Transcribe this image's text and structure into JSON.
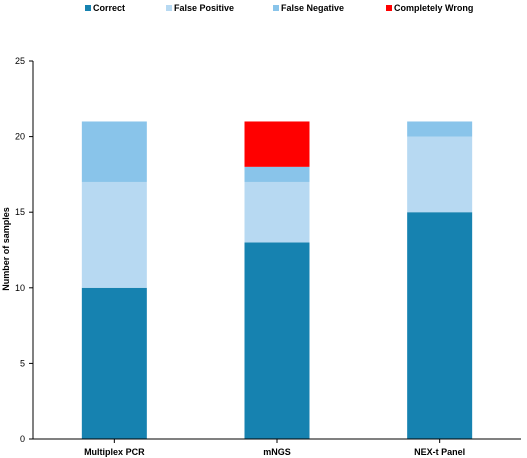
{
  "chart_data": {
    "type": "bar",
    "stacked": true,
    "categories": [
      "Multiplex PCR",
      "mNGS",
      "NEX-t Panel"
    ],
    "series": [
      {
        "name": "Correct",
        "values": [
          10,
          13,
          15
        ],
        "color": "#1682b0"
      },
      {
        "name": "False Positive",
        "values": [
          7,
          4,
          5
        ],
        "color": "#b7d9f2"
      },
      {
        "name": "False Negative",
        "values": [
          4,
          1,
          1
        ],
        "color": "#89c4ea"
      },
      {
        "name": "Completely Wrong",
        "values": [
          0,
          3,
          0
        ],
        "color": "#ff0000"
      }
    ],
    "title": "",
    "xlabel": "",
    "ylabel": "Number of samples",
    "ylim": [
      0,
      25
    ],
    "yticks": [
      0,
      5,
      10,
      15,
      20,
      25
    ],
    "grid": false,
    "legend_position": "top"
  }
}
